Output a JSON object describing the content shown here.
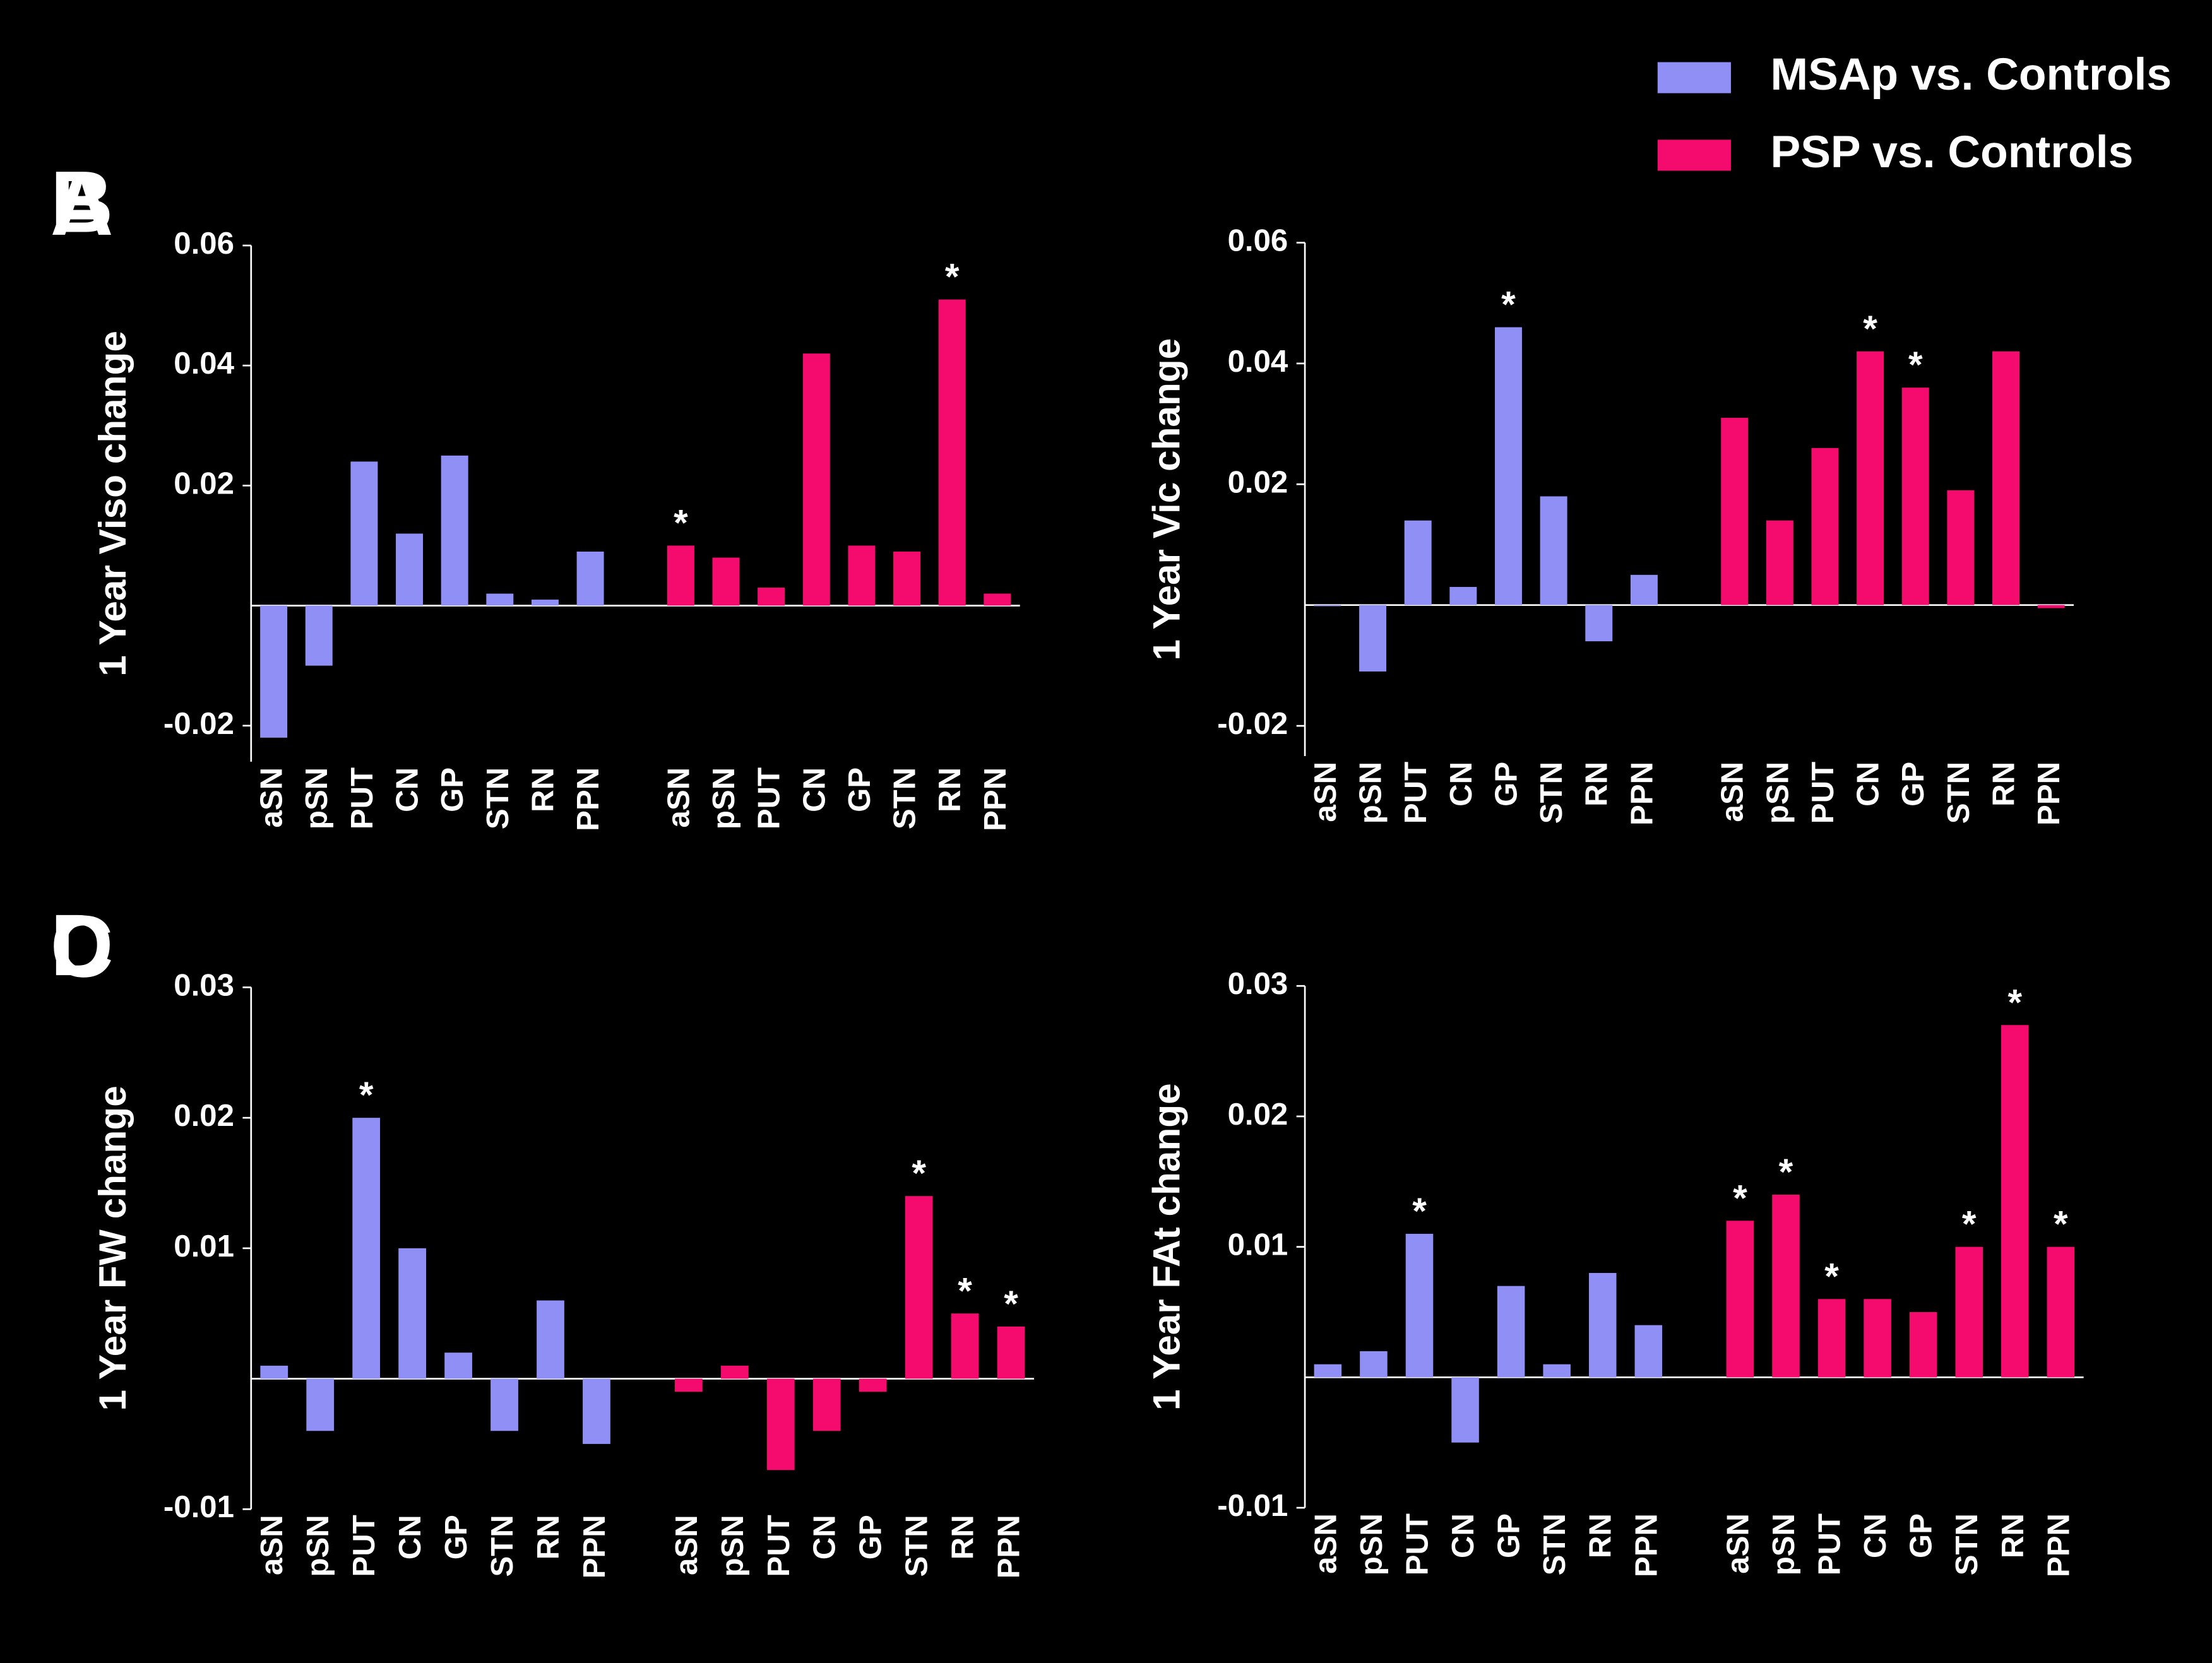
{
  "chart_data": [
    {
      "type": "bar",
      "panel": "A",
      "ylabel": "1 Year Viso change",
      "categories": [
        "aSN",
        "pSN",
        "PUT",
        "CN",
        "GP",
        "STN",
        "RN",
        "PPN"
      ],
      "series": [
        {
          "name": "MSAp vs. Controls",
          "color": "#8f8ff5",
          "values": [
            -0.022,
            -0.01,
            0.024,
            0.012,
            0.025,
            0.002,
            0.001,
            0.009
          ],
          "stars": [
            null,
            null,
            null,
            null,
            null,
            null,
            null,
            null
          ]
        },
        {
          "name": "PSP vs. Controls",
          "color": "#f50a6e",
          "values": [
            0.01,
            0.008,
            0.003,
            0.042,
            0.01,
            0.009,
            0.051,
            0.002
          ],
          "stars": [
            "*",
            null,
            null,
            null,
            null,
            null,
            "*",
            null
          ]
        }
      ],
      "ylim": [
        -0.026,
        0.06
      ],
      "yticks": [
        -0.02,
        0.02,
        0.04,
        0.06
      ]
    },
    {
      "type": "bar",
      "panel": "B",
      "ylabel": "1 Year Vic change",
      "categories": [
        "aSN",
        "pSN",
        "PUT",
        "CN",
        "GP",
        "STN",
        "RN",
        "PPN"
      ],
      "series": [
        {
          "name": "MSAp vs. Controls",
          "color": "#8f8ff5",
          "values": [
            0,
            -0.011,
            0.014,
            0.003,
            0.046,
            0.018,
            -0.006,
            0.005
          ],
          "stars": [
            null,
            null,
            null,
            null,
            "*",
            null,
            null,
            null
          ]
        },
        {
          "name": "PSP vs. Controls",
          "color": "#f50a6e",
          "values": [
            0.031,
            0.014,
            0.026,
            0.042,
            0.036,
            0.019,
            0.042,
            -0.0005
          ],
          "stars": [
            null,
            null,
            null,
            "*",
            "*",
            null,
            null,
            null
          ]
        }
      ],
      "ylim": [
        -0.025,
        0.06
      ],
      "yticks": [
        -0.02,
        0.02,
        0.04,
        0.06
      ]
    },
    {
      "type": "bar",
      "panel": "C",
      "ylabel": "1 Year FW change",
      "categories": [
        "aSN",
        "pSN",
        "PUT",
        "CN",
        "GP",
        "STN",
        "RN",
        "PPN"
      ],
      "series": [
        {
          "name": "MSAp vs. Controls",
          "color": "#8f8ff5",
          "values": [
            0.001,
            -0.004,
            0.02,
            0.01,
            0.002,
            -0.004,
            0.006,
            -0.005
          ],
          "stars": [
            null,
            null,
            "*",
            null,
            null,
            null,
            null,
            null
          ]
        },
        {
          "name": "PSP vs. Controls",
          "color": "#f50a6e",
          "values": [
            -0.001,
            0.001,
            -0.007,
            -0.004,
            -0.001,
            0.014,
            0.005,
            0.004
          ],
          "stars": [
            null,
            null,
            null,
            null,
            null,
            "*",
            "*",
            "*"
          ]
        }
      ],
      "ylim": [
        -0.01,
        0.03
      ],
      "yticks": [
        -0.01,
        0.01,
        0.02,
        0.03
      ]
    },
    {
      "type": "bar",
      "panel": "D",
      "ylabel": "1 Year FAt change",
      "categories": [
        "aSN",
        "pSN",
        "PUT",
        "CN",
        "GP",
        "STN",
        "RN",
        "PPN"
      ],
      "series": [
        {
          "name": "MSAp vs. Controls",
          "color": "#8f8ff5",
          "values": [
            0.001,
            0.002,
            0.011,
            -0.005,
            0.007,
            0.001,
            0.008,
            0.004
          ],
          "stars": [
            null,
            null,
            "*",
            null,
            null,
            null,
            null,
            null
          ]
        },
        {
          "name": "PSP vs. Controls",
          "color": "#f50a6e",
          "values": [
            0.012,
            0.014,
            0.006,
            0.006,
            0.005,
            0.01,
            0.027,
            0.01
          ],
          "stars": [
            "*",
            "*",
            "*",
            null,
            null,
            "*",
            "*",
            "*"
          ]
        }
      ],
      "ylim": [
        -0.01,
        0.03
      ],
      "yticks": [
        -0.01,
        0.01,
        0.02,
        0.03
      ]
    }
  ]
}
